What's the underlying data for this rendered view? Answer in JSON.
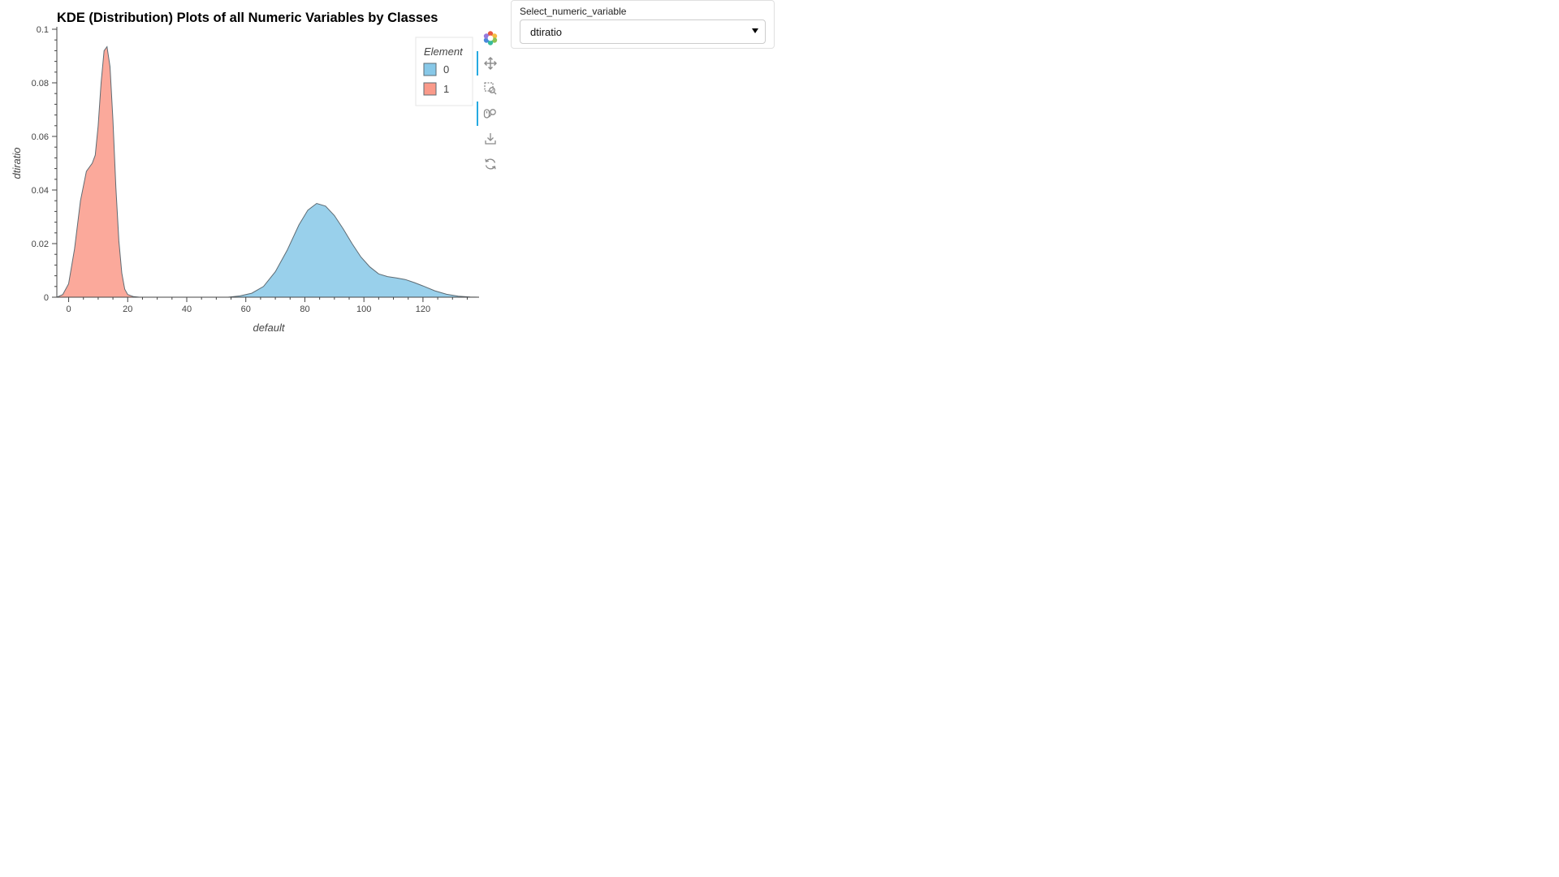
{
  "chart_data": {
    "type": "area",
    "title": "KDE (Distribution) Plots of all Numeric Variables by Classes",
    "xlabel": "default",
    "ylabel": "dtiratio",
    "xlim": [
      -4,
      139
    ],
    "ylim": [
      0,
      0.1
    ],
    "x_ticks": [
      0,
      20,
      40,
      60,
      80,
      100,
      120
    ],
    "y_ticks": [
      0,
      0.02,
      0.04,
      0.06,
      0.08,
      0.1
    ],
    "y_tick_labels": [
      "0",
      "0.02",
      "0.04",
      "0.06",
      "0.08",
      "0.1"
    ],
    "grid": false,
    "legend": {
      "title": "Element",
      "position": "top-right"
    },
    "series": [
      {
        "name": "0",
        "color": "#87c8e8",
        "x": [
          54,
          58,
          62,
          66,
          70,
          74,
          78,
          81,
          84,
          87,
          90,
          93,
          96,
          99,
          102,
          105,
          108,
          111,
          114,
          117,
          120,
          124,
          128,
          132,
          136,
          139
        ],
        "y": [
          0,
          0.0005,
          0.0015,
          0.004,
          0.0095,
          0.0175,
          0.027,
          0.0325,
          0.035,
          0.034,
          0.0305,
          0.0255,
          0.02,
          0.015,
          0.0113,
          0.0087,
          0.0077,
          0.0072,
          0.0066,
          0.0055,
          0.0042,
          0.0024,
          0.0011,
          0.0004,
          0.0001,
          0
        ]
      },
      {
        "name": "1",
        "color": "#fa9a8a",
        "x": [
          -4,
          -2,
          0,
          2,
          4,
          6,
          8,
          9,
          10,
          11,
          12,
          13,
          14,
          15,
          16,
          17,
          18,
          19,
          20,
          22,
          24
        ],
        "y": [
          0,
          0.001,
          0.005,
          0.018,
          0.036,
          0.047,
          0.05,
          0.053,
          0.064,
          0.08,
          0.092,
          0.0935,
          0.086,
          0.066,
          0.041,
          0.021,
          0.009,
          0.003,
          0.001,
          0.0002,
          0
        ]
      }
    ]
  },
  "widget": {
    "label": "Select_numeric_variable",
    "selected": "dtiratio"
  },
  "toolbar": {
    "tools": [
      "bokeh-logo-icon",
      "pan-icon",
      "box-zoom-icon",
      "wheel-zoom-icon",
      "save-icon",
      "reset-icon"
    ]
  }
}
